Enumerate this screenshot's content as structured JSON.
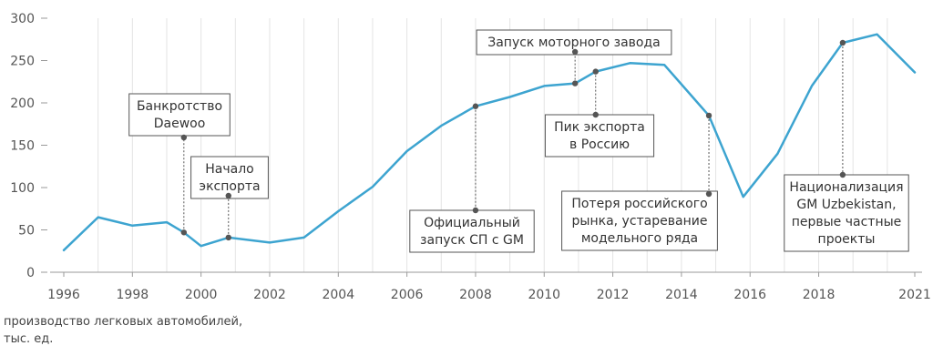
{
  "chart_data": {
    "type": "line",
    "x": [
      1996,
      1997,
      1998,
      1999,
      1999.5,
      2000,
      2000.8,
      2002,
      2003,
      2004,
      2005,
      2006,
      2007,
      2008,
      2009,
      2010,
      2010.9,
      2011.5,
      2012.5,
      2013.5,
      2014.8,
      2015.8,
      2016.8,
      2017.8,
      2018.7,
      2019.7,
      2020.8
    ],
    "series": [
      {
        "values": [
          26,
          65,
          55,
          59,
          47,
          31,
          41,
          35,
          41,
          72,
          101,
          143,
          173,
          196,
          207,
          220,
          223,
          237,
          247,
          245,
          185,
          89,
          140,
          220,
          271,
          281,
          236
        ]
      }
    ],
    "x_ticks": [
      "1996",
      "1998",
      "2000",
      "2002",
      "2004",
      "2006",
      "2008",
      "2010",
      "2012",
      "2014",
      "2016",
      "2018",
      "2021"
    ],
    "y_ticks": [
      0,
      50,
      100,
      150,
      200,
      250,
      300
    ],
    "ylim": [
      0,
      300
    ],
    "xlim": [
      1996,
      2020.8
    ],
    "title": "",
    "xlabel": "",
    "ylabel": "",
    "grid": "vertical",
    "line_color": "#3da4d0",
    "annotations": [
      {
        "id": "daewoo",
        "lines": [
          "Банкротство",
          "Daewoo"
        ],
        "x": 1999.5,
        "y": 47
      },
      {
        "id": "export-start",
        "lines": [
          "Начало",
          "экспорта"
        ],
        "x": 2000.8,
        "y": 41
      },
      {
        "id": "jv-launch",
        "lines": [
          "Официальный",
          "запуск СП с GM"
        ],
        "x": 2008,
        "y": 196
      },
      {
        "id": "engine-plant",
        "lines": [
          "Запуск моторного завода"
        ],
        "x": 2010.9,
        "y": 223
      },
      {
        "id": "export-peak",
        "lines": [
          "Пик экспорта",
          "в Россию"
        ],
        "x": 2011.5,
        "y": 237
      },
      {
        "id": "market-loss",
        "lines": [
          "Потеря российского",
          "рынка, устаревание",
          "модельного ряда"
        ],
        "x": 2014.8,
        "y": 185
      },
      {
        "id": "nationalization",
        "lines": [
          "Национализация",
          "GM Uzbekistan,",
          "первые частные",
          "проекты"
        ],
        "x": 2018.7,
        "y": 271
      }
    ]
  },
  "caption": {
    "line1": "производство легковых автомобилей,",
    "line2": "тыс. ед."
  }
}
